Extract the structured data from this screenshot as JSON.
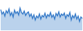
{
  "chart_data": {
    "type": "area",
    "categories": [
      null,
      null,
      null,
      null,
      null,
      null,
      null,
      null,
      null,
      null,
      null,
      null,
      null,
      null,
      null,
      null,
      null,
      null,
      null,
      null,
      null,
      null,
      null,
      null,
      null,
      null,
      null,
      null,
      null,
      null,
      null,
      null,
      null,
      null,
      null,
      null,
      null,
      null,
      null,
      null,
      null,
      null,
      null,
      null,
      null,
      null,
      null,
      null,
      null,
      null,
      null,
      null,
      null,
      null,
      null,
      null,
      null,
      null,
      null,
      null
    ],
    "values": [
      70,
      55,
      62,
      48,
      66,
      58,
      72,
      50,
      60,
      45,
      68,
      57,
      63,
      52,
      75,
      60,
      55,
      65,
      50,
      58,
      62,
      47,
      55,
      40,
      52,
      35,
      48,
      42,
      55,
      38,
      50,
      45,
      58,
      42,
      53,
      47,
      60,
      44,
      52,
      38,
      57,
      49,
      62,
      45,
      55,
      50,
      58,
      40,
      53,
      47,
      60,
      35,
      50,
      42,
      55,
      38,
      48,
      30,
      45,
      40
    ],
    "color": "#3a7dc9",
    "ylim": [
      0,
      100
    ],
    "grid": false,
    "tick_labels": false
  }
}
